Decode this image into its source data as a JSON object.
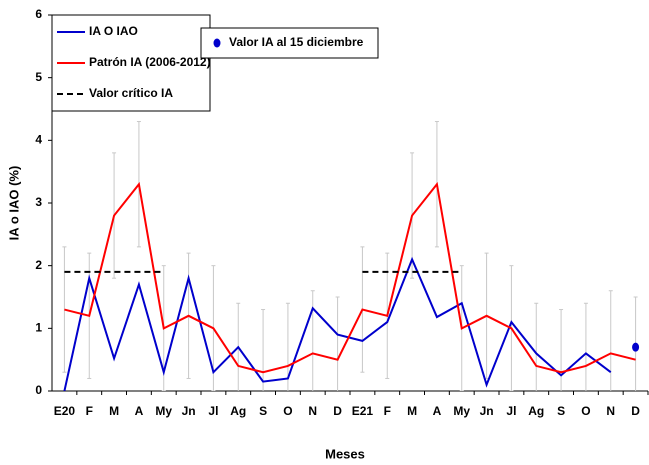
{
  "chart_data": {
    "type": "line",
    "y_label": "IA o IAO (%)",
    "x_label": "Meses",
    "categories": [
      "E20",
      "F",
      "M",
      "A",
      "My",
      "Jn",
      "Jl",
      "Ag",
      "S",
      "O",
      "N",
      "D",
      "E21",
      "F",
      "M",
      "A",
      "My",
      "Jn",
      "Jl",
      "Ag",
      "S",
      "O",
      "N",
      "D"
    ],
    "series": [
      {
        "name": "IA O IAO",
        "color": "#0000cc",
        "style": "line",
        "values": [
          0,
          1.8,
          0.52,
          1.7,
          0.3,
          1.8,
          0.3,
          0.7,
          0.15,
          0.2,
          1.32,
          0.9,
          0.8,
          1.1,
          2.1,
          1.18,
          1.4,
          0.1,
          1.1,
          0.6,
          0.25,
          0.6,
          0.3,
          null
        ]
      },
      {
        "name": "Patrón IA (2006-2012)",
        "color": "#ff0000",
        "style": "line",
        "error_color": "#c8c8c8",
        "values": [
          1.3,
          1.2,
          2.8,
          3.3,
          1.0,
          1.2,
          1.0,
          0.4,
          0.3,
          0.4,
          0.6,
          0.5,
          1.3,
          1.2,
          2.8,
          3.3,
          1.0,
          1.2,
          1.0,
          0.4,
          0.3,
          0.4,
          0.6,
          0.5
        ],
        "errors": [
          1,
          1,
          1,
          1,
          1,
          1,
          1,
          1,
          1,
          1,
          1,
          1,
          1,
          1,
          1,
          1,
          1,
          1,
          1,
          1,
          1,
          1,
          1,
          1
        ]
      },
      {
        "name": "Valor crítico IA",
        "color": "#000000",
        "style": "dashed",
        "values": [
          1.9,
          1.9,
          1.9,
          1.9,
          1.9,
          null,
          null,
          null,
          null,
          null,
          null,
          null,
          1.9,
          1.9,
          1.9,
          1.9,
          1.9,
          null,
          null,
          null,
          null,
          null,
          null,
          null
        ]
      },
      {
        "name": "Valor IA al 15 diciembre",
        "color": "#0000cc",
        "style": "marker",
        "values": [
          null,
          null,
          null,
          null,
          null,
          null,
          null,
          null,
          null,
          null,
          null,
          null,
          null,
          null,
          null,
          null,
          null,
          null,
          null,
          null,
          null,
          null,
          null,
          0.7
        ]
      }
    ],
    "ylim": [
      0,
      6
    ],
    "yticks": [
      0,
      1,
      2,
      3,
      4,
      5,
      6
    ]
  }
}
